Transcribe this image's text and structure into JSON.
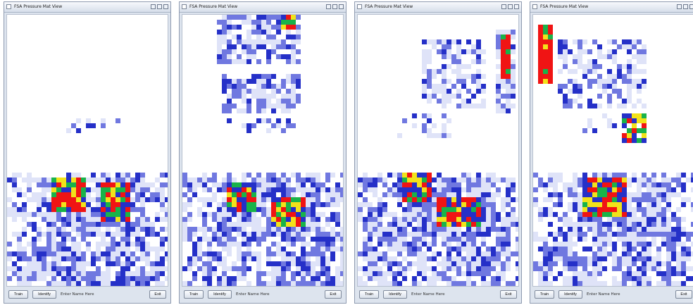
{
  "window_title": "FSA Pressure Mat View",
  "buttons": {
    "train": "Train",
    "identify": "Identify",
    "exit": "Exit"
  },
  "name_input": {
    "placeholder": "Enter Name Here"
  },
  "colors": {
    "low": "#dfe3f8",
    "mid": "#7078e0",
    "high": "#2530c8",
    "green": "#19b34a",
    "yellow": "#f2e21a",
    "red": "#f01414"
  },
  "windows": [
    {
      "id": "view-1",
      "posture": "feet"
    },
    {
      "id": "view-2",
      "posture": "feet-and-back"
    },
    {
      "id": "view-3",
      "posture": "feet-back-right-arm"
    },
    {
      "id": "view-4",
      "posture": "feet-back-left-arm"
    }
  ]
}
